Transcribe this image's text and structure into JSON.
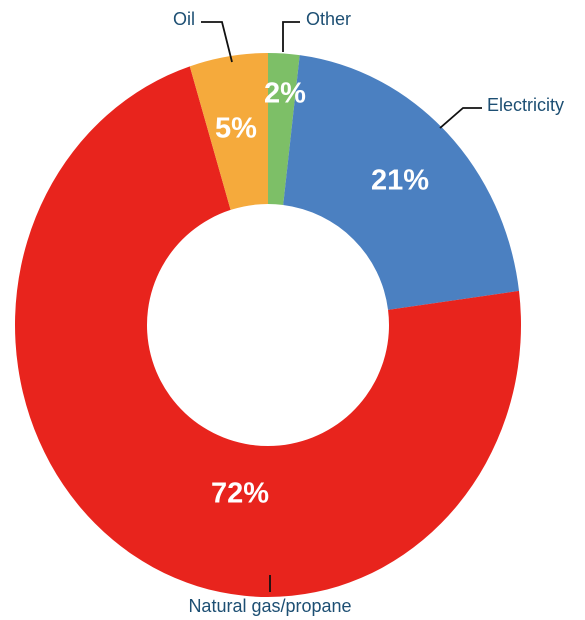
{
  "chart_data": {
    "type": "donut",
    "categories": [
      "Other",
      "Electricity",
      "Natural gas/propane",
      "Oil"
    ],
    "values": [
      2,
      21,
      72,
      5
    ],
    "value_labels": [
      "2%",
      "21%",
      "72%",
      "5%"
    ],
    "colors": [
      "#7dbf67",
      "#4b80c1",
      "#e8241d",
      "#f5aa3c"
    ]
  }
}
